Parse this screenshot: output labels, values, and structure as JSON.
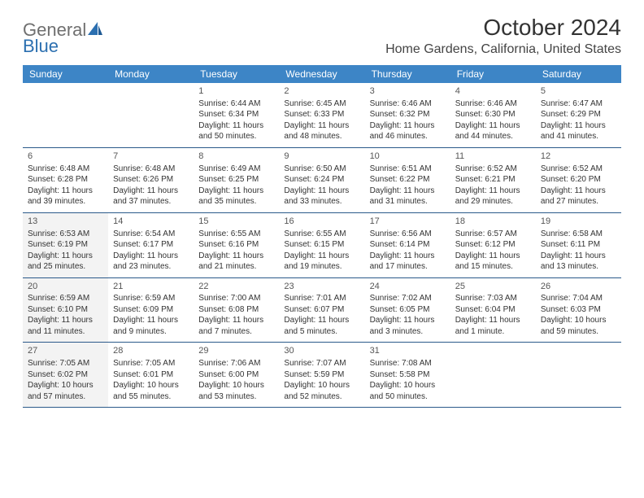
{
  "logo": {
    "text1": "General",
    "text2": "Blue"
  },
  "title": "October 2024",
  "location": "Home Gardens, California, United States",
  "colors": {
    "header_bg": "#3d85c6",
    "header_text": "#ffffff",
    "border": "#2b5a8a",
    "shaded": "#f3f3f3",
    "logo_gray": "#6f6f6f",
    "logo_blue": "#2b6fb0"
  },
  "day_headers": [
    "Sunday",
    "Monday",
    "Tuesday",
    "Wednesday",
    "Thursday",
    "Friday",
    "Saturday"
  ],
  "weeks": [
    [
      {
        "day": "",
        "sunrise": "",
        "sunset": "",
        "daylight": "",
        "shaded": false
      },
      {
        "day": "",
        "sunrise": "",
        "sunset": "",
        "daylight": "",
        "shaded": false
      },
      {
        "day": "1",
        "sunrise": "Sunrise: 6:44 AM",
        "sunset": "Sunset: 6:34 PM",
        "daylight": "Daylight: 11 hours and 50 minutes.",
        "shaded": false
      },
      {
        "day": "2",
        "sunrise": "Sunrise: 6:45 AM",
        "sunset": "Sunset: 6:33 PM",
        "daylight": "Daylight: 11 hours and 48 minutes.",
        "shaded": false
      },
      {
        "day": "3",
        "sunrise": "Sunrise: 6:46 AM",
        "sunset": "Sunset: 6:32 PM",
        "daylight": "Daylight: 11 hours and 46 minutes.",
        "shaded": false
      },
      {
        "day": "4",
        "sunrise": "Sunrise: 6:46 AM",
        "sunset": "Sunset: 6:30 PM",
        "daylight": "Daylight: 11 hours and 44 minutes.",
        "shaded": false
      },
      {
        "day": "5",
        "sunrise": "Sunrise: 6:47 AM",
        "sunset": "Sunset: 6:29 PM",
        "daylight": "Daylight: 11 hours and 41 minutes.",
        "shaded": false
      }
    ],
    [
      {
        "day": "6",
        "sunrise": "Sunrise: 6:48 AM",
        "sunset": "Sunset: 6:28 PM",
        "daylight": "Daylight: 11 hours and 39 minutes.",
        "shaded": false
      },
      {
        "day": "7",
        "sunrise": "Sunrise: 6:48 AM",
        "sunset": "Sunset: 6:26 PM",
        "daylight": "Daylight: 11 hours and 37 minutes.",
        "shaded": false
      },
      {
        "day": "8",
        "sunrise": "Sunrise: 6:49 AM",
        "sunset": "Sunset: 6:25 PM",
        "daylight": "Daylight: 11 hours and 35 minutes.",
        "shaded": false
      },
      {
        "day": "9",
        "sunrise": "Sunrise: 6:50 AM",
        "sunset": "Sunset: 6:24 PM",
        "daylight": "Daylight: 11 hours and 33 minutes.",
        "shaded": false
      },
      {
        "day": "10",
        "sunrise": "Sunrise: 6:51 AM",
        "sunset": "Sunset: 6:22 PM",
        "daylight": "Daylight: 11 hours and 31 minutes.",
        "shaded": false
      },
      {
        "day": "11",
        "sunrise": "Sunrise: 6:52 AM",
        "sunset": "Sunset: 6:21 PM",
        "daylight": "Daylight: 11 hours and 29 minutes.",
        "shaded": false
      },
      {
        "day": "12",
        "sunrise": "Sunrise: 6:52 AM",
        "sunset": "Sunset: 6:20 PM",
        "daylight": "Daylight: 11 hours and 27 minutes.",
        "shaded": false
      }
    ],
    [
      {
        "day": "13",
        "sunrise": "Sunrise: 6:53 AM",
        "sunset": "Sunset: 6:19 PM",
        "daylight": "Daylight: 11 hours and 25 minutes.",
        "shaded": true
      },
      {
        "day": "14",
        "sunrise": "Sunrise: 6:54 AM",
        "sunset": "Sunset: 6:17 PM",
        "daylight": "Daylight: 11 hours and 23 minutes.",
        "shaded": false
      },
      {
        "day": "15",
        "sunrise": "Sunrise: 6:55 AM",
        "sunset": "Sunset: 6:16 PM",
        "daylight": "Daylight: 11 hours and 21 minutes.",
        "shaded": false
      },
      {
        "day": "16",
        "sunrise": "Sunrise: 6:55 AM",
        "sunset": "Sunset: 6:15 PM",
        "daylight": "Daylight: 11 hours and 19 minutes.",
        "shaded": false
      },
      {
        "day": "17",
        "sunrise": "Sunrise: 6:56 AM",
        "sunset": "Sunset: 6:14 PM",
        "daylight": "Daylight: 11 hours and 17 minutes.",
        "shaded": false
      },
      {
        "day": "18",
        "sunrise": "Sunrise: 6:57 AM",
        "sunset": "Sunset: 6:12 PM",
        "daylight": "Daylight: 11 hours and 15 minutes.",
        "shaded": false
      },
      {
        "day": "19",
        "sunrise": "Sunrise: 6:58 AM",
        "sunset": "Sunset: 6:11 PM",
        "daylight": "Daylight: 11 hours and 13 minutes.",
        "shaded": false
      }
    ],
    [
      {
        "day": "20",
        "sunrise": "Sunrise: 6:59 AM",
        "sunset": "Sunset: 6:10 PM",
        "daylight": "Daylight: 11 hours and 11 minutes.",
        "shaded": true
      },
      {
        "day": "21",
        "sunrise": "Sunrise: 6:59 AM",
        "sunset": "Sunset: 6:09 PM",
        "daylight": "Daylight: 11 hours and 9 minutes.",
        "shaded": false
      },
      {
        "day": "22",
        "sunrise": "Sunrise: 7:00 AM",
        "sunset": "Sunset: 6:08 PM",
        "daylight": "Daylight: 11 hours and 7 minutes.",
        "shaded": false
      },
      {
        "day": "23",
        "sunrise": "Sunrise: 7:01 AM",
        "sunset": "Sunset: 6:07 PM",
        "daylight": "Daylight: 11 hours and 5 minutes.",
        "shaded": false
      },
      {
        "day": "24",
        "sunrise": "Sunrise: 7:02 AM",
        "sunset": "Sunset: 6:05 PM",
        "daylight": "Daylight: 11 hours and 3 minutes.",
        "shaded": false
      },
      {
        "day": "25",
        "sunrise": "Sunrise: 7:03 AM",
        "sunset": "Sunset: 6:04 PM",
        "daylight": "Daylight: 11 hours and 1 minute.",
        "shaded": false
      },
      {
        "day": "26",
        "sunrise": "Sunrise: 7:04 AM",
        "sunset": "Sunset: 6:03 PM",
        "daylight": "Daylight: 10 hours and 59 minutes.",
        "shaded": false
      }
    ],
    [
      {
        "day": "27",
        "sunrise": "Sunrise: 7:05 AM",
        "sunset": "Sunset: 6:02 PM",
        "daylight": "Daylight: 10 hours and 57 minutes.",
        "shaded": true
      },
      {
        "day": "28",
        "sunrise": "Sunrise: 7:05 AM",
        "sunset": "Sunset: 6:01 PM",
        "daylight": "Daylight: 10 hours and 55 minutes.",
        "shaded": false
      },
      {
        "day": "29",
        "sunrise": "Sunrise: 7:06 AM",
        "sunset": "Sunset: 6:00 PM",
        "daylight": "Daylight: 10 hours and 53 minutes.",
        "shaded": false
      },
      {
        "day": "30",
        "sunrise": "Sunrise: 7:07 AM",
        "sunset": "Sunset: 5:59 PM",
        "daylight": "Daylight: 10 hours and 52 minutes.",
        "shaded": false
      },
      {
        "day": "31",
        "sunrise": "Sunrise: 7:08 AM",
        "sunset": "Sunset: 5:58 PM",
        "daylight": "Daylight: 10 hours and 50 minutes.",
        "shaded": false
      },
      {
        "day": "",
        "sunrise": "",
        "sunset": "",
        "daylight": "",
        "shaded": false
      },
      {
        "day": "",
        "sunrise": "",
        "sunset": "",
        "daylight": "",
        "shaded": false
      }
    ]
  ]
}
